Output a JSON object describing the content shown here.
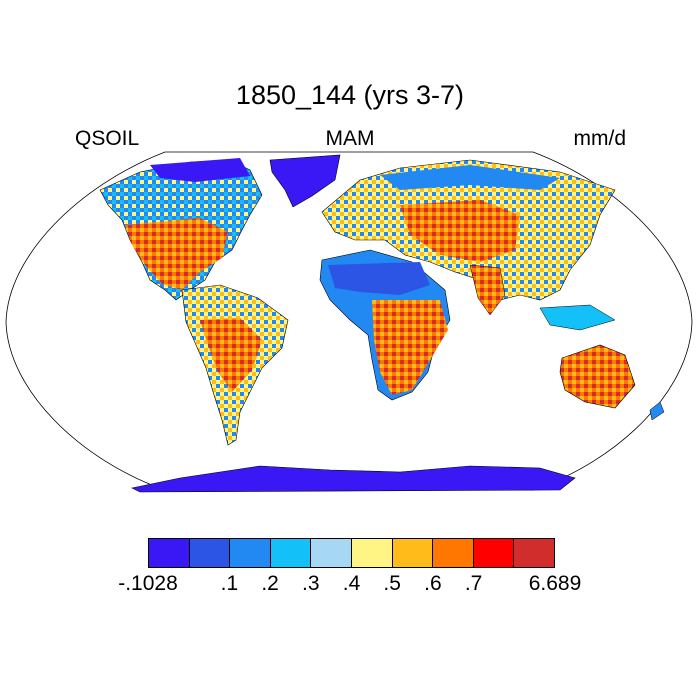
{
  "title": "1850_144 (yrs 3-7)",
  "left_label": "QSOIL",
  "center_label": "MAM",
  "right_label": "mm/d",
  "colorbar": {
    "colors": [
      "#3a18f5",
      "#2c55e6",
      "#2389f2",
      "#13c0f7",
      "#a6d8f3",
      "#fff585",
      "#ffbb19",
      "#ff7600",
      "#ff0000",
      "#d22d2d"
    ],
    "tick_labels": [
      "-.1028",
      ".1",
      ".2",
      ".3",
      ".4",
      ".5",
      ".6",
      ".7",
      "6.689"
    ]
  },
  "map": {
    "projection": "robinson",
    "ocean_color": "#ffffff",
    "land_outline_color": "#000000"
  }
}
